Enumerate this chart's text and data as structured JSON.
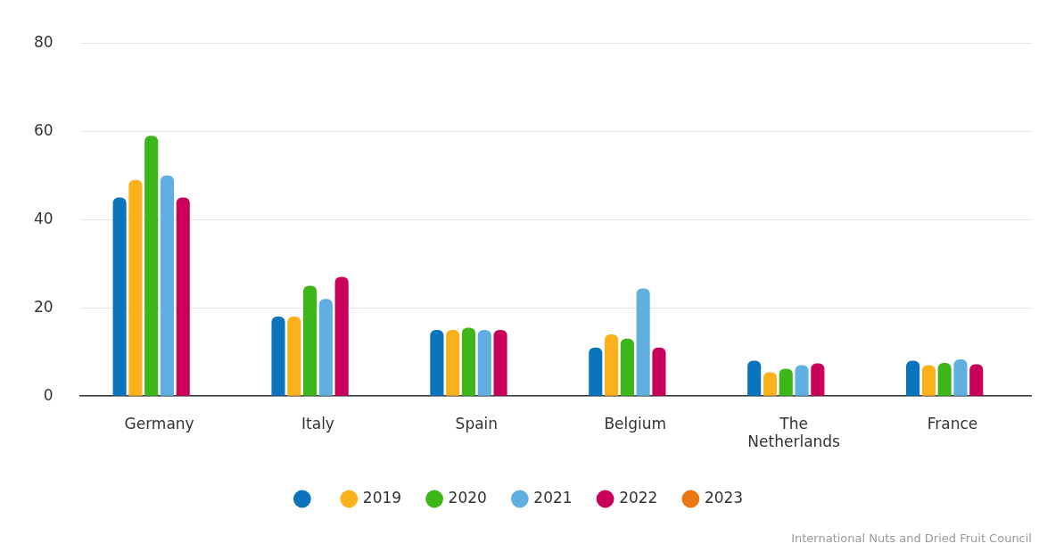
{
  "chart_data": {
    "type": "bar",
    "categories": [
      "Germany",
      "Italy",
      "Spain",
      "Belgium",
      "The Netherlands",
      "France"
    ],
    "series": [
      {
        "color": "#0a74bd",
        "values": [
          45,
          18,
          15,
          11,
          8,
          8
        ]
      },
      {
        "name": "2019",
        "color": "#fbb11b",
        "values": [
          49,
          18,
          15,
          14,
          5.4,
          7
        ]
      },
      {
        "name": "2020",
        "color": "#3cb619",
        "values": [
          59,
          25,
          15.5,
          13,
          6.2,
          7.5
        ]
      },
      {
        "name": "2021",
        "color": "#5fb0e0",
        "values": [
          50,
          22,
          15,
          24.4,
          7,
          8.3
        ]
      },
      {
        "name": "2022",
        "color": "#c80059",
        "values": [
          45,
          27,
          15,
          11,
          7.4,
          7.2
        ]
      },
      {
        "name": "2023",
        "color": "#ec7612",
        "values": [
          null,
          null,
          null,
          null,
          null,
          null
        ]
      }
    ],
    "ylim": [
      0,
      80
    ],
    "yticks": [
      0,
      20,
      40,
      60,
      80
    ],
    "grid": "y",
    "legend": "bottom",
    "annotations": [
      "International Nuts and Dried Fruit Council"
    ]
  }
}
